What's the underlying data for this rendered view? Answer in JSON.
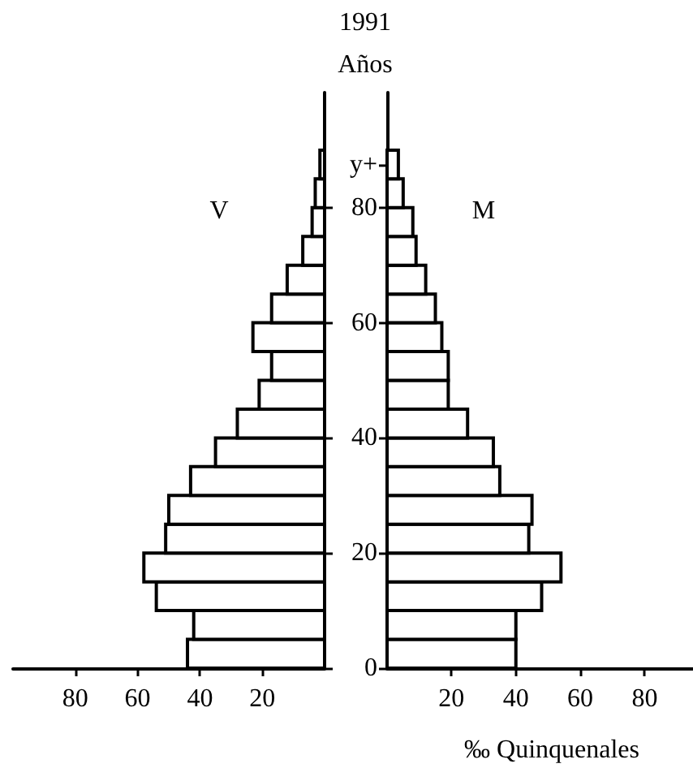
{
  "chart_data": [
    {
      "type": "histogram",
      "orientation": "horizontal",
      "bins": [
        0,
        5,
        10,
        15,
        20,
        25,
        30,
        35,
        40,
        45,
        50,
        55,
        60,
        65,
        70,
        75,
        80,
        85,
        90
      ],
      "series": [
        {
          "name": "V",
          "color": "#ffffff",
          "values": [
            44,
            42,
            54,
            58,
            51,
            50,
            43,
            35,
            28,
            21,
            17,
            23,
            17,
            12,
            7,
            4,
            3,
            1.5
          ]
        }
      ],
      "xlim": [
        100,
        0
      ],
      "xticks": [
        80,
        60,
        40,
        20
      ],
      "ylim": [
        0,
        100
      ],
      "yticks": [
        0,
        20,
        40,
        60,
        80
      ],
      "tick_labels": "x"
    },
    {
      "type": "histogram",
      "orientation": "horizontal",
      "title": "1991",
      "ylabel": "Años",
      "xlabel": "‰ Quinquenales",
      "bins": [
        0,
        5,
        10,
        15,
        20,
        25,
        30,
        35,
        40,
        45,
        50,
        55,
        60,
        65,
        70,
        75,
        80,
        85,
        90
      ],
      "series": [
        {
          "name": "M",
          "color": "#ffffff",
          "values": [
            40,
            40,
            48,
            54,
            44,
            45,
            35,
            33,
            25,
            19,
            19,
            17,
            15,
            12,
            9,
            8,
            5,
            3.5
          ]
        }
      ],
      "xlim": [
        0,
        95
      ],
      "xticks": [
        20,
        40,
        60,
        80
      ],
      "ylim": [
        0,
        100
      ],
      "yticks": [
        0,
        20,
        40,
        60,
        80,
        {
          "value": 87.5,
          "label": "y+"
        }
      ]
    }
  ]
}
